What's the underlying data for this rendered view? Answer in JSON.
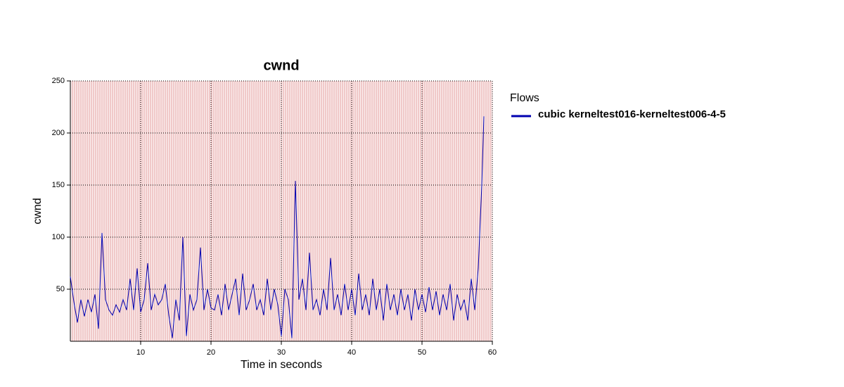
{
  "chart_data": {
    "type": "line",
    "title": "cwnd",
    "x_label": "Time in seconds",
    "y_label": "cwnd",
    "legend_title": "Flows",
    "x": [
      0,
      0.5,
      1,
      1.5,
      2,
      2.5,
      3,
      3.5,
      4,
      4.5,
      5,
      5.5,
      6,
      6.5,
      7,
      7.5,
      8,
      8.5,
      9,
      9.5,
      10,
      10.5,
      11,
      11.5,
      12,
      12.5,
      13,
      13.5,
      14,
      14.5,
      15,
      15.5,
      16,
      16.5,
      17,
      17.5,
      18,
      18.5,
      19,
      19.5,
      20,
      20.5,
      21,
      21.5,
      22,
      22.5,
      23,
      23.5,
      24,
      24.5,
      25,
      25.5,
      26,
      26.5,
      27,
      27.5,
      28,
      28.5,
      29,
      29.5,
      30,
      30.5,
      31,
      31.5,
      32,
      32.5,
      33,
      33.5,
      34,
      34.5,
      35,
      35.5,
      36,
      36.5,
      37,
      37.5,
      38,
      38.5,
      39,
      39.5,
      40,
      40.5,
      41,
      41.5,
      42,
      42.5,
      43,
      43.5,
      44,
      44.5,
      45,
      45.5,
      46,
      46.5,
      47,
      47.5,
      48,
      48.5,
      49,
      49.5,
      50,
      50.5,
      51,
      51.5,
      52,
      52.5,
      53,
      53.5,
      54,
      54.5,
      55,
      55.5,
      56,
      56.5,
      57,
      57.5,
      58,
      58.5,
      58.8
    ],
    "series": [
      {
        "name": "cubic kerneltest016-kerneltest006-4-5",
        "color": "#0000b0",
        "values": [
          62,
          38,
          18,
          40,
          24,
          40,
          28,
          45,
          12,
          104,
          40,
          30,
          25,
          35,
          28,
          40,
          30,
          60,
          30,
          70,
          28,
          40,
          75,
          30,
          45,
          35,
          40,
          55,
          25,
          3,
          40,
          20,
          100,
          5,
          45,
          30,
          40,
          90,
          30,
          50,
          32,
          30,
          45,
          25,
          55,
          30,
          45,
          60,
          25,
          65,
          30,
          40,
          55,
          30,
          40,
          25,
          60,
          30,
          50,
          35,
          5,
          50,
          40,
          3,
          154,
          40,
          60,
          30,
          85,
          30,
          40,
          25,
          50,
          30,
          80,
          30,
          45,
          25,
          55,
          30,
          50,
          25,
          65,
          30,
          45,
          25,
          60,
          30,
          50,
          20,
          55,
          30,
          45,
          25,
          50,
          30,
          45,
          20,
          50,
          30,
          45,
          28,
          52,
          30,
          48,
          25,
          45,
          30,
          55,
          20,
          45,
          30,
          40,
          20,
          60,
          30,
          70,
          150,
          216
        ]
      }
    ],
    "xlim": [
      0,
      60
    ],
    "ylim": [
      0,
      250
    ],
    "xticks": [
      10,
      20,
      30,
      40,
      50,
      60
    ],
    "yticks": [
      50,
      100,
      150,
      200,
      250
    ],
    "grid": true
  }
}
